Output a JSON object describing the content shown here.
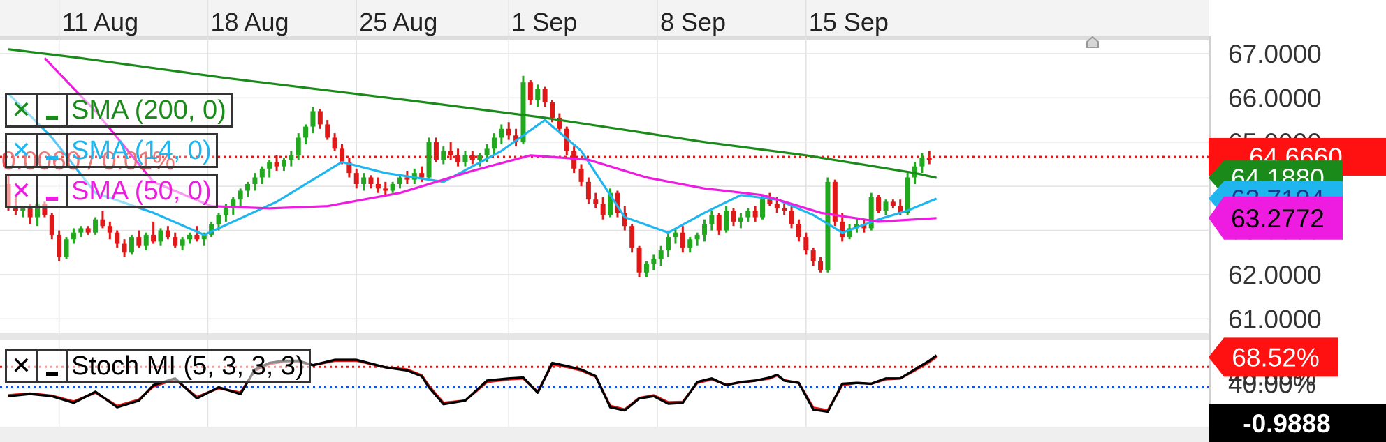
{
  "chart_data": [
    {
      "type": "candlestick",
      "x_tick_labels": [
        "11 Aug",
        "18 Aug",
        "25 Aug",
        "1 Sep",
        "8 Sep",
        "15 Sep"
      ],
      "y_tick_labels": [
        "67.0000",
        "66.0000",
        "65.0000",
        "64.0000",
        "63.0000",
        "62.0000",
        "61.0000"
      ],
      "ylim": [
        60.8,
        67.3
      ],
      "grid": true,
      "candles": [
        [
          64.05,
          64.25,
          63.45,
          63.55
        ],
        [
          63.55,
          63.75,
          63.35,
          63.45
        ],
        [
          63.45,
          63.55,
          63.3,
          63.5
        ],
        [
          63.5,
          63.6,
          63.15,
          63.3
        ],
        [
          63.3,
          63.7,
          63.1,
          63.6
        ],
        [
          63.6,
          63.65,
          63.3,
          63.35
        ],
        [
          63.35,
          63.4,
          62.8,
          62.9
        ],
        [
          62.9,
          63.0,
          62.3,
          62.4
        ],
        [
          62.4,
          62.85,
          62.35,
          62.8
        ],
        [
          62.8,
          63.05,
          62.7,
          62.95
        ],
        [
          62.95,
          63.1,
          62.85,
          63.05
        ],
        [
          63.05,
          63.1,
          62.9,
          62.95
        ],
        [
          62.95,
          63.3,
          62.9,
          63.25
        ],
        [
          63.25,
          63.45,
          63.05,
          63.1
        ],
        [
          63.1,
          63.2,
          62.8,
          62.95
        ],
        [
          62.95,
          63.0,
          62.6,
          62.7
        ],
        [
          62.7,
          62.8,
          62.4,
          62.5
        ],
        [
          62.5,
          62.9,
          62.45,
          62.85
        ],
        [
          62.85,
          63.0,
          62.6,
          62.65
        ],
        [
          62.65,
          62.95,
          62.55,
          62.9
        ],
        [
          62.9,
          63.2,
          62.7,
          62.75
        ],
        [
          62.75,
          63.05,
          62.65,
          63.0
        ],
        [
          63.0,
          63.1,
          62.8,
          62.85
        ],
        [
          62.85,
          62.95,
          62.6,
          62.65
        ],
        [
          62.65,
          62.85,
          62.55,
          62.8
        ],
        [
          62.8,
          62.95,
          62.7,
          62.9
        ],
        [
          62.9,
          63.1,
          62.75,
          62.8
        ],
        [
          62.8,
          62.95,
          62.65,
          62.9
        ],
        [
          62.9,
          63.2,
          62.85,
          63.15
        ],
        [
          63.15,
          63.4,
          63.0,
          63.35
        ],
        [
          63.35,
          63.6,
          63.2,
          63.5
        ],
        [
          63.5,
          63.75,
          63.35,
          63.7
        ],
        [
          63.7,
          63.95,
          63.55,
          63.9
        ],
        [
          63.9,
          64.1,
          63.75,
          64.05
        ],
        [
          64.05,
          64.3,
          63.9,
          64.2
        ],
        [
          64.2,
          64.45,
          64.05,
          64.4
        ],
        [
          64.4,
          64.6,
          64.2,
          64.55
        ],
        [
          64.55,
          64.7,
          64.35,
          64.45
        ],
        [
          64.45,
          64.65,
          64.35,
          64.6
        ],
        [
          64.6,
          64.8,
          64.45,
          64.7
        ],
        [
          64.7,
          65.2,
          64.6,
          65.1
        ],
        [
          65.1,
          65.4,
          64.95,
          65.35
        ],
        [
          65.35,
          65.8,
          65.2,
          65.7
        ],
        [
          65.7,
          65.75,
          65.3,
          65.4
        ],
        [
          65.4,
          65.5,
          65.05,
          65.1
        ],
        [
          65.1,
          65.2,
          64.8,
          64.85
        ],
        [
          64.85,
          64.95,
          64.5,
          64.55
        ],
        [
          64.55,
          64.65,
          64.2,
          64.3
        ],
        [
          64.3,
          64.4,
          63.95,
          64.05
        ],
        [
          64.05,
          64.3,
          63.9,
          64.2
        ],
        [
          64.2,
          64.25,
          63.95,
          64.05
        ],
        [
          64.05,
          64.2,
          63.85,
          63.95
        ],
        [
          63.95,
          64.1,
          63.8,
          63.9
        ],
        [
          63.9,
          64.1,
          63.85,
          64.05
        ],
        [
          64.05,
          64.25,
          63.95,
          64.2
        ],
        [
          64.2,
          64.35,
          64.05,
          64.15
        ],
        [
          64.15,
          64.4,
          64.05,
          64.3
        ],
        [
          64.3,
          64.45,
          64.1,
          64.2
        ],
        [
          64.2,
          65.1,
          64.15,
          65.0
        ],
        [
          65.0,
          65.1,
          64.55,
          64.6
        ],
        [
          64.6,
          64.9,
          64.5,
          64.8
        ],
        [
          64.8,
          65.0,
          64.6,
          64.7
        ],
        [
          64.7,
          64.85,
          64.45,
          64.55
        ],
        [
          64.55,
          64.8,
          64.45,
          64.7
        ],
        [
          64.7,
          64.8,
          64.5,
          64.6
        ],
        [
          64.6,
          64.75,
          64.45,
          64.7
        ],
        [
          64.7,
          64.95,
          64.55,
          64.85
        ],
        [
          64.85,
          65.2,
          64.7,
          65.1
        ],
        [
          65.1,
          65.4,
          64.95,
          65.3
        ],
        [
          65.3,
          65.45,
          65.05,
          65.15
        ],
        [
          65.15,
          65.3,
          64.9,
          65.0
        ],
        [
          65.0,
          66.5,
          64.95,
          66.35
        ],
        [
          66.35,
          66.4,
          65.85,
          65.95
        ],
        [
          65.95,
          66.3,
          65.8,
          66.2
        ],
        [
          66.2,
          66.25,
          65.8,
          65.9
        ],
        [
          65.9,
          65.95,
          65.45,
          65.55
        ],
        [
          65.55,
          65.65,
          65.2,
          65.3
        ],
        [
          65.3,
          65.35,
          64.7,
          64.8
        ],
        [
          64.8,
          64.9,
          64.3,
          64.4
        ],
        [
          64.4,
          64.5,
          64.0,
          64.1
        ],
        [
          64.1,
          64.2,
          63.6,
          63.7
        ],
        [
          63.7,
          63.85,
          63.5,
          63.6
        ],
        [
          63.6,
          63.75,
          63.25,
          63.35
        ],
        [
          63.35,
          63.95,
          63.3,
          63.85
        ],
        [
          63.85,
          63.9,
          63.3,
          63.4
        ],
        [
          63.4,
          63.55,
          63.0,
          63.1
        ],
        [
          63.1,
          63.15,
          62.5,
          62.6
        ],
        [
          62.6,
          62.65,
          61.95,
          62.05
        ],
        [
          62.05,
          62.3,
          61.95,
          62.25
        ],
        [
          62.25,
          62.45,
          62.1,
          62.35
        ],
        [
          62.35,
          62.65,
          62.2,
          62.55
        ],
        [
          62.55,
          62.95,
          62.4,
          62.85
        ],
        [
          62.85,
          63.05,
          62.7,
          62.95
        ],
        [
          62.95,
          63.1,
          62.5,
          62.6
        ],
        [
          62.6,
          62.85,
          62.5,
          62.8
        ],
        [
          62.8,
          62.95,
          62.65,
          62.9
        ],
        [
          62.9,
          63.25,
          62.75,
          63.15
        ],
        [
          63.15,
          63.45,
          63.0,
          63.35
        ],
        [
          63.35,
          63.4,
          62.9,
          63.0
        ],
        [
          63.0,
          63.55,
          62.95,
          63.45
        ],
        [
          63.45,
          63.5,
          63.1,
          63.2
        ],
        [
          63.2,
          63.4,
          63.05,
          63.3
        ],
        [
          63.3,
          63.5,
          63.2,
          63.45
        ],
        [
          63.45,
          63.55,
          63.2,
          63.3
        ],
        [
          63.3,
          63.8,
          63.25,
          63.7
        ],
        [
          63.7,
          63.85,
          63.55,
          63.6
        ],
        [
          63.6,
          63.75,
          63.4,
          63.5
        ],
        [
          63.5,
          63.65,
          63.35,
          63.45
        ],
        [
          63.45,
          63.55,
          63.05,
          63.15
        ],
        [
          63.15,
          63.25,
          62.75,
          62.85
        ],
        [
          62.85,
          62.95,
          62.45,
          62.55
        ],
        [
          62.55,
          62.6,
          62.2,
          62.3
        ],
        [
          62.3,
          62.4,
          62.05,
          62.1
        ],
        [
          62.1,
          64.2,
          62.05,
          64.1
        ],
        [
          64.1,
          64.15,
          63.1,
          63.2
        ],
        [
          63.2,
          63.4,
          62.75,
          62.85
        ],
        [
          62.85,
          63.15,
          62.8,
          63.05
        ],
        [
          63.05,
          63.3,
          62.95,
          63.15
        ],
        [
          63.15,
          63.25,
          62.95,
          63.05
        ],
        [
          63.05,
          63.85,
          63.0,
          63.75
        ],
        [
          63.75,
          63.8,
          63.4,
          63.45
        ],
        [
          63.45,
          63.7,
          63.35,
          63.65
        ],
        [
          63.65,
          63.7,
          63.5,
          63.55
        ],
        [
          63.55,
          63.7,
          63.35,
          63.4
        ],
        [
          63.4,
          64.3,
          63.35,
          64.2
        ],
        [
          64.2,
          64.55,
          64.05,
          64.45
        ],
        [
          64.45,
          64.75,
          64.3,
          64.65
        ],
        [
          64.65,
          64.8,
          64.5,
          64.6
        ]
      ],
      "series": [
        {
          "name": "SMA (200, 0)",
          "color": "#1a8a1a",
          "x": [
            0,
            10,
            30,
            55,
            74,
            96,
            110,
            125,
            128
          ],
          "values": [
            67.1,
            66.9,
            66.45,
            65.95,
            65.55,
            65.0,
            64.7,
            64.3,
            64.19
          ]
        },
        {
          "name": "SMA (14, 0)",
          "color": "#1fb6f0",
          "x": [
            0,
            6,
            12,
            20,
            27,
            37,
            46,
            52,
            60,
            68,
            74,
            79,
            85,
            91,
            96,
            101,
            106,
            111,
            115,
            120,
            124,
            128
          ],
          "values": [
            66.1,
            65.1,
            63.85,
            63.4,
            62.9,
            63.65,
            64.55,
            64.3,
            64.1,
            64.8,
            65.5,
            64.8,
            63.3,
            62.95,
            63.4,
            63.8,
            63.7,
            63.35,
            62.95,
            63.25,
            63.45,
            63.72
          ]
        },
        {
          "name": "SMA (50, 0)",
          "color": "#ee1ce0",
          "x": [
            5,
            12,
            20,
            28,
            36,
            44,
            54,
            64,
            72,
            80,
            88,
            96,
            104,
            112,
            120,
            128
          ],
          "values": [
            66.9,
            65.7,
            64.1,
            63.55,
            63.5,
            63.55,
            63.85,
            64.35,
            64.7,
            64.6,
            64.2,
            63.95,
            63.8,
            63.4,
            63.2,
            63.28
          ]
        }
      ],
      "last_price_line": 64.666,
      "last_price_tag": "64.6660",
      "series_value_tags": [
        "64.1880",
        "63.7194",
        "63.2772"
      ],
      "change_text": "0.0060 / 0.01%"
    },
    {
      "type": "line",
      "ylim": [
        -70,
        100
      ],
      "y_tick_labels": [
        "40.00%"
      ],
      "x": [
        0,
        3,
        6,
        9,
        12,
        15,
        18,
        20,
        23,
        26,
        29,
        32,
        34,
        36,
        38,
        40,
        42,
        45,
        48,
        52,
        55,
        57,
        58,
        60,
        63,
        66,
        69,
        71,
        73,
        75,
        77,
        79,
        81,
        83,
        85,
        87,
        89,
        91,
        93,
        95,
        97,
        99,
        101,
        103,
        105,
        106,
        107,
        109,
        111,
        113,
        115,
        117,
        119,
        121,
        123,
        125,
        127,
        128
      ],
      "series": [
        {
          "name": "Stoch MI",
          "color": "#000000",
          "values": [
            -20,
            -15,
            -20,
            -35,
            -10,
            -45,
            -30,
            5,
            20,
            -25,
            0,
            -15,
            40,
            55,
            60,
            60,
            50,
            62,
            62,
            45,
            38,
            25,
            0,
            -38,
            -30,
            15,
            20,
            22,
            -12,
            55,
            48,
            40,
            25,
            -45,
            -52,
            -25,
            -20,
            -37,
            -35,
            12,
            20,
            5,
            12,
            15,
            22,
            28,
            15,
            10,
            -50,
            -55,
            8,
            10,
            8,
            20,
            20,
            40,
            60,
            72
          ]
        },
        {
          "name": "Signal",
          "color": "#ee1111",
          "values": [
            -18,
            -14,
            -19,
            -32,
            -12,
            -42,
            -28,
            2,
            18,
            -22,
            -2,
            -12,
            38,
            53,
            58,
            58,
            50,
            60,
            60,
            45,
            40,
            27,
            3,
            -35,
            -30,
            12,
            18,
            20,
            -10,
            52,
            46,
            38,
            24,
            -42,
            -50,
            -24,
            -18,
            -34,
            -33,
            10,
            18,
            6,
            11,
            15,
            20,
            27,
            16,
            10,
            -46,
            -52,
            5,
            10,
            8,
            18,
            20,
            38,
            57,
            69
          ]
        }
      ],
      "overbought_line": 46,
      "oversold_line": 0,
      "value_tag": "68.52%",
      "hover_readout": "-0.9888",
      "extra_tick": "40.00%"
    }
  ],
  "legend": [
    {
      "close": "✕",
      "label": "SMA (200, 0)",
      "color": "#1a8a1a"
    },
    {
      "close": "✕",
      "label": "SMA (14, 0)",
      "color": "#1fb6f0"
    },
    {
      "close": "✕",
      "label": "SMA (50, 0)",
      "color": "#ee1ce0"
    }
  ],
  "stoch_legend": {
    "close": "✕",
    "label": "Stoch MI (5, 3, 3, 3)"
  }
}
